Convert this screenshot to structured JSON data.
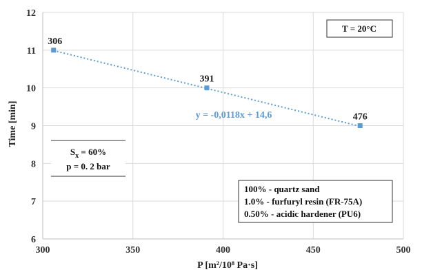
{
  "chart_data": {
    "type": "scatter",
    "title": "",
    "xlabel": "P [m²/10⁸ Pa·s]",
    "ylabel": "Time [min]",
    "xlim": [
      300,
      500
    ],
    "ylim": [
      6,
      12
    ],
    "xticks": [
      300,
      350,
      400,
      450,
      500
    ],
    "yticks": [
      6,
      7,
      8,
      9,
      10,
      11,
      12
    ],
    "grid": true,
    "series": [
      {
        "x": [
          306,
          391,
          476
        ],
        "y": [
          11,
          10,
          9
        ],
        "point_labels": [
          "306",
          "391",
          "476"
        ],
        "color": "#5b9bd5"
      }
    ],
    "trendline": {
      "type": "linear",
      "equation": "y = -0,0118x + 14,6",
      "slope": -0.0118,
      "intercept": 14.6,
      "color": "#5b9bd5",
      "style": "dotted"
    },
    "annotations": {
      "temperature": "T = 20°C",
      "sx_symbol": "S",
      "sx_subscript": "x",
      "sx_value": " = 60%",
      "pressure": "p = 0. 2 bar",
      "composition": [
        "100% - quartz sand",
        "1.0% - furfuryl resin (FR-75A)",
        "0.50% - acidic hardener (PU6)"
      ]
    }
  }
}
